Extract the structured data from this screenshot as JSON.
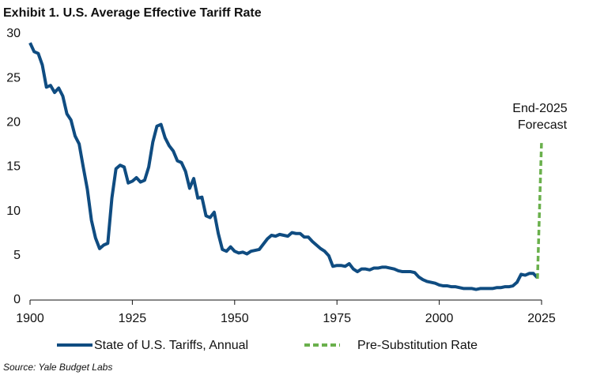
{
  "chart_data": {
    "type": "line",
    "title": "Exhibit 1. U.S. Average Effective Tariff Rate",
    "source": "Source: Yale Budget Labs",
    "annotation": [
      "End-2025",
      "Forecast"
    ],
    "xlim": [
      1900,
      2025
    ],
    "xticks": [
      1900,
      1925,
      1950,
      1975,
      2000,
      2025
    ],
    "ylim": [
      0,
      30
    ],
    "yticks": [
      0,
      5,
      10,
      15,
      20,
      25,
      30
    ],
    "grid": false,
    "series": [
      {
        "name": "State of U.S. Tariffs, Annual",
        "color": "#0f4c81",
        "dashed": false,
        "x": [
          1900,
          1901,
          1902,
          1903,
          1904,
          1905,
          1906,
          1907,
          1908,
          1909,
          1910,
          1911,
          1912,
          1913,
          1914,
          1915,
          1916,
          1917,
          1918,
          1919,
          1920,
          1921,
          1922,
          1923,
          1924,
          1925,
          1926,
          1927,
          1928,
          1929,
          1930,
          1931,
          1932,
          1933,
          1934,
          1935,
          1936,
          1937,
          1938,
          1939,
          1940,
          1941,
          1942,
          1943,
          1944,
          1945,
          1946,
          1947,
          1948,
          1949,
          1950,
          1951,
          1952,
          1953,
          1954,
          1955,
          1956,
          1957,
          1958,
          1959,
          1960,
          1961,
          1962,
          1963,
          1964,
          1965,
          1966,
          1967,
          1968,
          1969,
          1970,
          1971,
          1972,
          1973,
          1974,
          1975,
          1976,
          1977,
          1978,
          1979,
          1980,
          1981,
          1982,
          1983,
          1984,
          1985,
          1986,
          1987,
          1988,
          1989,
          1990,
          1991,
          1992,
          1993,
          1994,
          1995,
          1996,
          1997,
          1998,
          1999,
          2000,
          2001,
          2002,
          2003,
          2004,
          2005,
          2006,
          2007,
          2008,
          2009,
          2010,
          2011,
          2012,
          2013,
          2014,
          2015,
          2016,
          2017,
          2018,
          2019,
          2020,
          2021,
          2022,
          2023,
          2024
        ],
        "values": [
          29,
          28,
          27.8,
          26.5,
          24,
          24.2,
          23.4,
          23.9,
          23,
          21,
          20.3,
          18.5,
          17.6,
          15,
          12.5,
          9,
          7,
          5.8,
          6.2,
          6.4,
          11.5,
          14.8,
          15.2,
          15,
          13.2,
          13.4,
          13.8,
          13.3,
          13.5,
          15,
          17.8,
          19.6,
          19.8,
          18.3,
          17.4,
          16.8,
          15.7,
          15.5,
          14.5,
          12.6,
          13.7,
          11.5,
          11.6,
          9.5,
          9.3,
          9.9,
          7.5,
          5.7,
          5.5,
          6,
          5.5,
          5.3,
          5.4,
          5.2,
          5.5,
          5.6,
          5.7,
          6.3,
          6.9,
          7.3,
          7.2,
          7.4,
          7.3,
          7.2,
          7.6,
          7.5,
          7.5,
          7.1,
          7.1,
          6.6,
          6.2,
          5.8,
          5.5,
          5,
          3.8,
          3.9,
          3.9,
          3.8,
          4.1,
          3.5,
          3.2,
          3.5,
          3.5,
          3.4,
          3.6,
          3.6,
          3.7,
          3.7,
          3.6,
          3.5,
          3.3,
          3.2,
          3.2,
          3.2,
          3.1,
          2.6,
          2.3,
          2.1,
          2,
          1.9,
          1.7,
          1.6,
          1.6,
          1.5,
          1.5,
          1.4,
          1.3,
          1.3,
          1.3,
          1.2,
          1.3,
          1.3,
          1.3,
          1.3,
          1.4,
          1.4,
          1.5,
          1.5,
          1.6,
          2,
          2.9,
          2.8,
          3,
          3,
          2.5
        ]
      },
      {
        "name": "Pre-Substitution Rate",
        "color": "#6ab04c",
        "dashed": true,
        "x": [
          2024,
          2025
        ],
        "values": [
          2.4,
          18
        ]
      }
    ]
  }
}
